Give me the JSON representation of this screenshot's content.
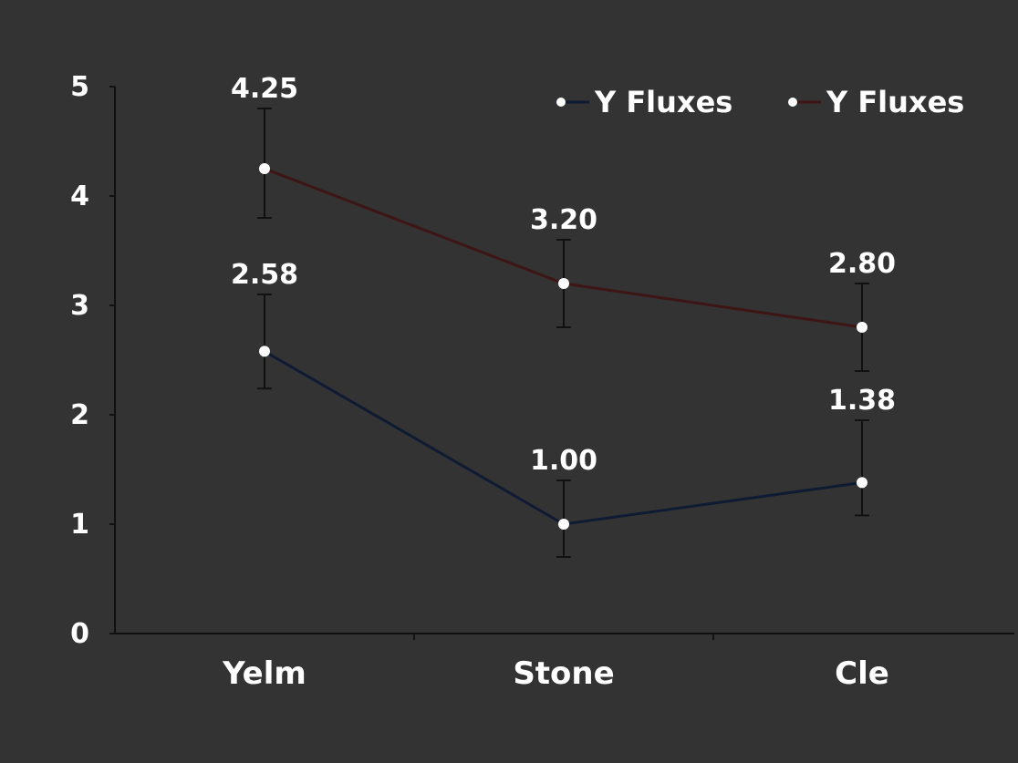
{
  "chart_data": {
    "type": "line",
    "categories": [
      "Yelm",
      "Stone",
      "Cle"
    ],
    "ylim": [
      0,
      5
    ],
    "yticks": [
      "0",
      "1",
      "2",
      "3",
      "4",
      "5"
    ],
    "ylabel": "",
    "grid": false,
    "legend_position": "top-right",
    "series": [
      {
        "name": "Y Fluxes",
        "color": "#0f1a33",
        "values": [
          2.58,
          1.0,
          1.38
        ],
        "err_low": [
          2.24,
          0.7,
          1.08
        ],
        "err_high": [
          3.1,
          1.4,
          1.95
        ],
        "data_labels": [
          "2.58",
          "1.00",
          "1.38"
        ]
      },
      {
        "name": "Y Fluxes",
        "color": "#3d1515",
        "values": [
          4.25,
          3.2,
          2.8
        ],
        "err_low": [
          3.8,
          2.8,
          2.4
        ],
        "err_high": [
          4.8,
          3.6,
          3.2
        ],
        "data_labels": [
          "4.25",
          "3.20",
          "2.80"
        ]
      }
    ]
  }
}
